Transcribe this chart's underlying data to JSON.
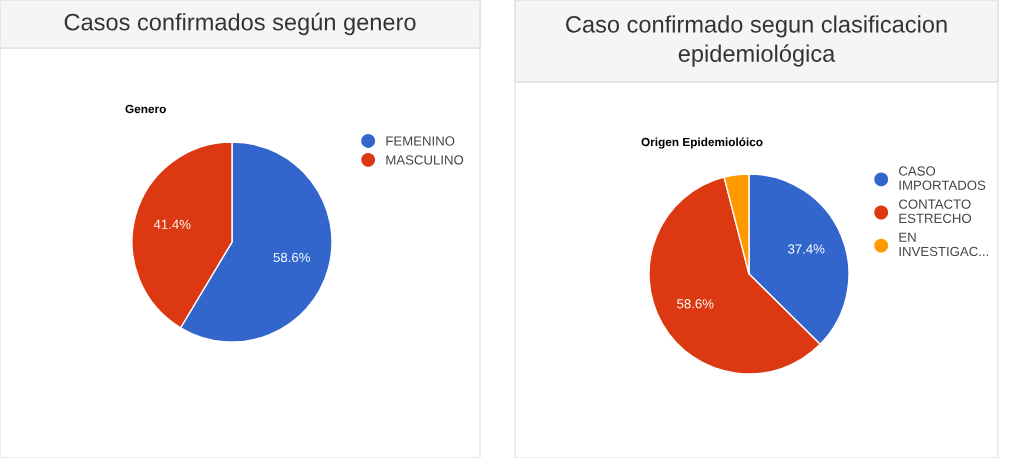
{
  "chart_data": [
    {
      "type": "pie",
      "title": "Casos confirmados según genero",
      "subtitle": "Genero",
      "categories": [
        "FEMENINO",
        "MASCULINO"
      ],
      "values": [
        58.6,
        41.4
      ],
      "colors": [
        "#3366cc",
        "#dc3912"
      ],
      "value_labels": [
        "58.6%",
        "41.4%"
      ],
      "legend": "right"
    },
    {
      "type": "pie",
      "title": "Caso confirmado segun clasificacion epidemiológica",
      "subtitle": "Origen Epidemiolóico",
      "categories": [
        "CASO IMPORTADOS",
        "CONTACTO ESTRECHO",
        "EN INVESTIGAC..."
      ],
      "values": [
        37.4,
        58.6,
        4.0
      ],
      "colors": [
        "#3366cc",
        "#dc3912",
        "#ff9900"
      ],
      "value_labels": [
        "37.4%",
        "58.6%",
        null
      ],
      "legend": "right"
    }
  ]
}
